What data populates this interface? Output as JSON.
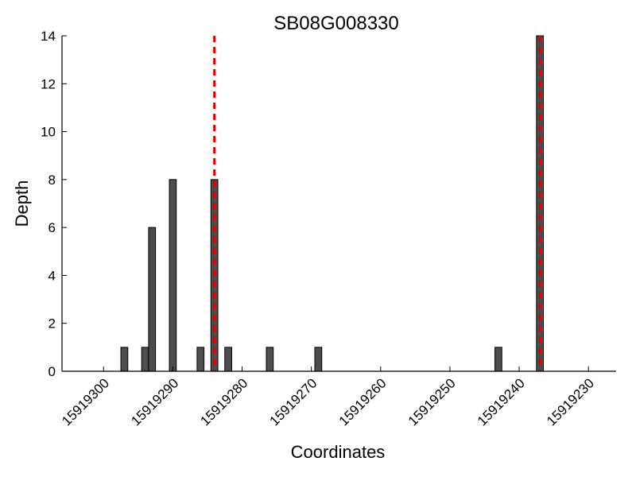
{
  "chart_data": {
    "type": "bar",
    "title": "SB08G008330",
    "xlabel": "Coordinates",
    "ylabel": "Depth",
    "x_axis_reversed": true,
    "xlim": [
      15919306,
      15919226
    ],
    "ylim": [
      0,
      14
    ],
    "x_ticks": [
      15919300,
      15919290,
      15919280,
      15919270,
      15919260,
      15919250,
      15919240,
      15919230
    ],
    "x_tick_labels": [
      "15919300",
      "15919290",
      "15919280",
      "15919270",
      "15919260",
      "15919250",
      "15919240",
      "15919230"
    ],
    "y_ticks": [
      0,
      2,
      4,
      6,
      8,
      10,
      12,
      14
    ],
    "y_tick_labels": [
      "0",
      "2",
      "4",
      "6",
      "8",
      "10",
      "12",
      "14"
    ],
    "grid": false,
    "bar_color": "#4d4d4d",
    "series": [
      {
        "points": [
          {
            "x": 15919297,
            "y": 1
          },
          {
            "x": 15919294,
            "y": 1
          },
          {
            "x": 15919293,
            "y": 6
          },
          {
            "x": 15919290,
            "y": 8
          },
          {
            "x": 15919286,
            "y": 1
          },
          {
            "x": 15919284,
            "y": 8
          },
          {
            "x": 15919282,
            "y": 1
          },
          {
            "x": 15919276,
            "y": 1
          },
          {
            "x": 15919269,
            "y": 1
          },
          {
            "x": 15919243,
            "y": 1
          },
          {
            "x": 15919237,
            "y": 14
          }
        ]
      }
    ],
    "reference_lines": [
      {
        "x": 15919284,
        "color": "#e00000",
        "style": "dashed"
      },
      {
        "x": 15919237,
        "color": "#e00000",
        "style": "dashed"
      }
    ]
  }
}
